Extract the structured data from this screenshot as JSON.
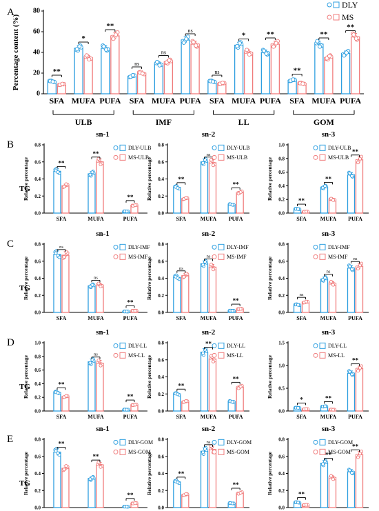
{
  "colors": {
    "dly": "#2e9fe0",
    "ms": "#f07c7c",
    "text": "#000000"
  },
  "chart_data": [
    {
      "type": "bar",
      "panel": "A",
      "ylabel": "Percentage content (%)",
      "ylim": [
        0,
        80
      ],
      "yticks": [
        "0",
        "20",
        "40",
        "60",
        "80"
      ],
      "categories": [
        "SFA",
        "MUFA",
        "PUFA",
        "SFA",
        "MUFA",
        "PUFA",
        "SFA",
        "MUFA",
        "PUFA",
        "SFA",
        "MUFA",
        "PUFA"
      ],
      "groups": [
        "ULB",
        "IMF",
        "LL",
        "GOM"
      ],
      "series": [
        {
          "name": "DLY",
          "values": [
            12,
            44,
            44,
            17,
            29,
            52,
            12,
            47,
            40,
            13,
            48,
            39
          ]
        },
        {
          "name": "MS",
          "values": [
            9,
            35,
            56,
            20,
            31,
            48,
            10,
            40,
            48,
            10,
            35,
            55
          ]
        }
      ],
      "sig": [
        "**",
        "*",
        "**",
        "ns",
        "ns",
        "ns",
        "ns",
        "*",
        "**",
        "**",
        "**",
        "**"
      ]
    },
    {
      "type": "bar",
      "panel": "B",
      "title": "sn-1",
      "ylabel": "Relative percentage",
      "ylim": [
        0,
        0.8
      ],
      "yticks": [
        "0.0",
        "0.2",
        "0.4",
        "0.6",
        "0.8"
      ],
      "categories": [
        "SFA",
        "MUFA",
        "PUFA"
      ],
      "series": [
        {
          "name": "DLY-ULB",
          "values": [
            0.49,
            0.46,
            0.02
          ]
        },
        {
          "name": "MS-ULB",
          "values": [
            0.32,
            0.6,
            0.09
          ]
        }
      ],
      "sig": [
        "**",
        "**",
        "**"
      ]
    },
    {
      "type": "bar",
      "panel": "B",
      "title": "sn-2",
      "ylabel": "Relative percentage",
      "ylim": [
        0,
        0.8
      ],
      "yticks": [
        "0.0",
        "0.2",
        "0.4",
        "0.6",
        "0.8"
      ],
      "categories": [
        "SFA",
        "MUFA",
        "PUFA"
      ],
      "series": [
        {
          "name": "DLY-ULB",
          "values": [
            0.3,
            0.6,
            0.1
          ]
        },
        {
          "name": "MS-ULB",
          "values": [
            0.17,
            0.59,
            0.24
          ]
        }
      ],
      "sig": [
        "**",
        "ns",
        "**"
      ]
    },
    {
      "type": "bar",
      "panel": "B",
      "title": "sn-3",
      "ylabel": "Relative percentage",
      "ylim": [
        0,
        1.0
      ],
      "yticks": [
        "0.0",
        "0.2",
        "0.4",
        "0.6",
        "0.8",
        "1.0"
      ],
      "categories": [
        "SFA",
        "MUFA",
        "PUFA"
      ],
      "series": [
        {
          "name": "DLY-ULB",
          "values": [
            0.06,
            0.38,
            0.56
          ]
        },
        {
          "name": "MS-ULB",
          "values": [
            0.02,
            0.2,
            0.78
          ]
        }
      ],
      "sig": [
        "**",
        "**",
        "**"
      ]
    },
    {
      "type": "bar",
      "panel": "C",
      "title": "sn-1",
      "ylabel": "Relative percentage",
      "ylim": [
        0,
        0.8
      ],
      "yticks": [
        "0.0",
        "0.2",
        "0.4",
        "0.6",
        "0.8"
      ],
      "categories": [
        "SFA",
        "MUFA",
        "PUFA"
      ],
      "series": [
        {
          "name": "DLY-IMF",
          "values": [
            0.68,
            0.31,
            0.01
          ]
        },
        {
          "name": "MS-IMF",
          "values": [
            0.67,
            0.32,
            0.02
          ]
        }
      ],
      "sig": [
        "ns",
        "ns",
        "**"
      ]
    },
    {
      "type": "bar",
      "panel": "C",
      "title": "sn-2",
      "ylabel": "Relative percentage",
      "ylim": [
        0,
        0.8
      ],
      "yticks": [
        "0.0",
        "0.2",
        "0.4",
        "0.6",
        "0.8"
      ],
      "categories": [
        "SFA",
        "MUFA",
        "PUFA"
      ],
      "series": [
        {
          "name": "DLY-IMF",
          "values": [
            0.41,
            0.57,
            0.02
          ]
        },
        {
          "name": "MS-IMF",
          "values": [
            0.43,
            0.53,
            0.04
          ]
        }
      ],
      "sig": [
        "ns",
        "ns",
        "**"
      ]
    },
    {
      "type": "bar",
      "panel": "C",
      "title": "sn-3",
      "ylabel": "Relative percentage",
      "ylim": [
        0,
        0.8
      ],
      "yticks": [
        "0.0",
        "0.2",
        "0.4",
        "0.6",
        "0.8"
      ],
      "categories": [
        "SFA",
        "MUFA",
        "PUFA"
      ],
      "series": [
        {
          "name": "DLY-IMF",
          "values": [
            0.09,
            0.39,
            0.52
          ]
        },
        {
          "name": "MS-IMF",
          "values": [
            0.12,
            0.34,
            0.54
          ]
        }
      ],
      "sig": [
        "ns",
        "ns",
        "ns"
      ]
    },
    {
      "type": "bar",
      "panel": "D",
      "title": "sn-1",
      "ylabel": "Relative percentage",
      "ylim": [
        0,
        1.0
      ],
      "yticks": [
        "0.0",
        "0.2",
        "0.4",
        "0.6",
        "0.8",
        "1.0"
      ],
      "categories": [
        "SFA",
        "MUFA",
        "PUFA"
      ],
      "series": [
        {
          "name": "DLY-LL",
          "values": [
            0.27,
            0.72,
            0.02
          ]
        },
        {
          "name": "MS-LL",
          "values": [
            0.21,
            0.7,
            0.09
          ]
        }
      ],
      "sig": [
        "**",
        "ns",
        "**"
      ]
    },
    {
      "type": "bar",
      "panel": "D",
      "title": "sn-2",
      "ylabel": "Relative percentage",
      "ylim": [
        0,
        0.8
      ],
      "yticks": [
        "0.0",
        "0.2",
        "0.4",
        "0.6",
        "0.8"
      ],
      "categories": [
        "SFA",
        "MUFA",
        "PUFA"
      ],
      "series": [
        {
          "name": "DLY-LL",
          "values": [
            0.2,
            0.69,
            0.11
          ]
        },
        {
          "name": "MS-LL",
          "values": [
            0.11,
            0.61,
            0.28
          ]
        }
      ],
      "sig": [
        "**",
        "**",
        "**"
      ]
    },
    {
      "type": "bar",
      "panel": "D",
      "title": "sn-3",
      "ylabel": "Relative percentage",
      "ylim": [
        0,
        1.5
      ],
      "yticks": [
        "0.0",
        "0.5",
        "1.0",
        "1.5"
      ],
      "categories": [
        "SFA",
        "MUFA",
        "PUFA"
      ],
      "series": [
        {
          "name": "DLY-LL",
          "values": [
            0.07,
            0.1,
            0.83
          ]
        },
        {
          "name": "MS-LL",
          "values": [
            0.04,
            0.03,
            0.93
          ]
        }
      ],
      "sig": [
        "*",
        "**",
        "**"
      ]
    },
    {
      "type": "bar",
      "panel": "E",
      "title": "sn-1",
      "ylabel": "Relative percentage",
      "ylim": [
        0,
        0.8
      ],
      "yticks": [
        "0.0",
        "0.2",
        "0.4",
        "0.6",
        "0.8"
      ],
      "categories": [
        "SFA",
        "MUFA",
        "PUFA"
      ],
      "series": [
        {
          "name": "DLY-GOM",
          "values": [
            0.65,
            0.34,
            0.01
          ]
        },
        {
          "name": "MS-GOM",
          "values": [
            0.46,
            0.5,
            0.05
          ]
        }
      ],
      "sig": [
        "**",
        "**",
        "**"
      ]
    },
    {
      "type": "bar",
      "panel": "E",
      "title": "sn-2",
      "ylabel": "Relative percentage",
      "ylim": [
        0,
        0.8
      ],
      "yticks": [
        "0.0",
        "0.2",
        "0.4",
        "0.6",
        "0.8"
      ],
      "categories": [
        "SFA",
        "MUFA",
        "PUFA"
      ],
      "series": [
        {
          "name": "DLY-GOM",
          "values": [
            0.3,
            0.66,
            0.05
          ]
        },
        {
          "name": "MS-GOM",
          "values": [
            0.15,
            0.68,
            0.17
          ]
        }
      ],
      "sig": [
        "**",
        "ns",
        "**"
      ]
    },
    {
      "type": "bar",
      "panel": "E",
      "title": "sn-3",
      "ylabel": "Relative percentage",
      "ylim": [
        0,
        0.8
      ],
      "yticks": [
        "0.0",
        "0.2",
        "0.4",
        "0.6",
        "0.8"
      ],
      "categories": [
        "SFA",
        "MUFA",
        "PUFA"
      ],
      "series": [
        {
          "name": "DLY-GOM",
          "values": [
            0.06,
            0.52,
            0.42
          ]
        },
        {
          "name": "MS-GOM",
          "values": [
            0.03,
            0.35,
            0.62
          ]
        }
      ],
      "sig": [
        "**",
        "**",
        "**"
      ]
    }
  ],
  "panel_letters": [
    "A",
    "B",
    "C",
    "D",
    "E"
  ],
  "row_label": "TG"
}
